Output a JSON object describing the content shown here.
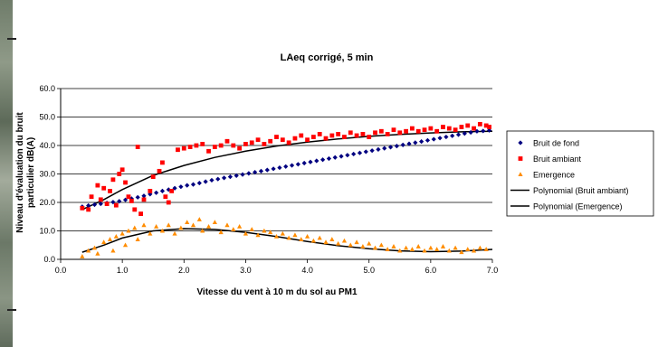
{
  "colors": {
    "bruit_de_fond": "#000080",
    "bruit_ambiant": "#ff0000",
    "emergence": "#ff8c00",
    "trend": "#000000",
    "grid": "#000000"
  },
  "chart_data": {
    "type": "scatter",
    "title": "LAeq corrigé, 5 min",
    "xlabel": "Vitesse du vent à 10 m du sol au PM1",
    "ylabel": [
      "Niveau d'évaluation du bruit",
      "particulier dB(A)"
    ],
    "xlim": [
      0,
      7
    ],
    "ylim": [
      0,
      60
    ],
    "x_ticks": [
      "0.0",
      "1.0",
      "2.0",
      "3.0",
      "4.0",
      "5.0",
      "6.0",
      "7.0"
    ],
    "y_ticks": [
      "0.0",
      "10.0",
      "20.0",
      "30.0",
      "40.0",
      "50.0",
      "60.0"
    ],
    "grid": "horizontal",
    "legend_position": "right",
    "series": [
      {
        "name": "Bruit de fond",
        "marker": "diamond",
        "points": [
          [
            0.35,
            18.5
          ],
          [
            0.45,
            18.9
          ],
          [
            0.55,
            19.2
          ],
          [
            0.65,
            19.5
          ],
          [
            0.75,
            19.8
          ],
          [
            0.85,
            20.1
          ],
          [
            0.95,
            20.4
          ],
          [
            1.05,
            20.9
          ],
          [
            1.15,
            21.3
          ],
          [
            1.25,
            21.8
          ],
          [
            1.35,
            22.3
          ],
          [
            1.45,
            22.9
          ],
          [
            1.55,
            23.4
          ],
          [
            1.65,
            24.0
          ],
          [
            1.75,
            24.5
          ],
          [
            1.85,
            25.0
          ],
          [
            1.95,
            25.5
          ],
          [
            2.05,
            26.0
          ],
          [
            2.15,
            26.3
          ],
          [
            2.25,
            26.8
          ],
          [
            2.35,
            27.3
          ],
          [
            2.45,
            27.8
          ],
          [
            2.55,
            28.2
          ],
          [
            2.65,
            28.6
          ],
          [
            2.75,
            29.0
          ],
          [
            2.85,
            29.4
          ],
          [
            2.95,
            29.8
          ],
          [
            3.05,
            30.2
          ],
          [
            3.15,
            30.6
          ],
          [
            3.25,
            31.0
          ],
          [
            3.35,
            31.4
          ],
          [
            3.45,
            31.8
          ],
          [
            3.55,
            32.2
          ],
          [
            3.65,
            32.6
          ],
          [
            3.75,
            33.0
          ],
          [
            3.85,
            33.4
          ],
          [
            3.95,
            33.8
          ],
          [
            4.05,
            34.2
          ],
          [
            4.15,
            34.6
          ],
          [
            4.25,
            35.0
          ],
          [
            4.35,
            35.4
          ],
          [
            4.45,
            35.8
          ],
          [
            4.55,
            36.2
          ],
          [
            4.65,
            36.6
          ],
          [
            4.75,
            37.0
          ],
          [
            4.85,
            37.4
          ],
          [
            4.95,
            37.8
          ],
          [
            5.05,
            38.2
          ],
          [
            5.15,
            38.6
          ],
          [
            5.25,
            39.0
          ],
          [
            5.35,
            39.4
          ],
          [
            5.45,
            39.8
          ],
          [
            5.55,
            40.2
          ],
          [
            5.65,
            40.6
          ],
          [
            5.75,
            41.0
          ],
          [
            5.85,
            41.4
          ],
          [
            5.95,
            41.8
          ],
          [
            6.05,
            42.2
          ],
          [
            6.15,
            42.6
          ],
          [
            6.25,
            43.0
          ],
          [
            6.35,
            43.4
          ],
          [
            6.45,
            43.8
          ],
          [
            6.55,
            44.2
          ],
          [
            6.65,
            44.6
          ],
          [
            6.75,
            45.0
          ],
          [
            6.85,
            45.1
          ],
          [
            6.95,
            45.3
          ]
        ]
      },
      {
        "name": "Bruit ambiant",
        "marker": "square",
        "points": [
          [
            0.35,
            18.0
          ],
          [
            0.45,
            17.5
          ],
          [
            0.5,
            22.0
          ],
          [
            0.6,
            26.0
          ],
          [
            0.65,
            21.0
          ],
          [
            0.7,
            25.0
          ],
          [
            0.75,
            19.5
          ],
          [
            0.8,
            24.0
          ],
          [
            0.85,
            28.0
          ],
          [
            0.9,
            19.0
          ],
          [
            0.95,
            30.0
          ],
          [
            1.0,
            31.5
          ],
          [
            1.05,
            27.0
          ],
          [
            1.1,
            22.0
          ],
          [
            1.15,
            20.5
          ],
          [
            1.2,
            17.5
          ],
          [
            1.25,
            39.5
          ],
          [
            1.3,
            16.0
          ],
          [
            1.35,
            21.0
          ],
          [
            1.45,
            24.0
          ],
          [
            1.5,
            29.0
          ],
          [
            1.6,
            31.0
          ],
          [
            1.65,
            34.0
          ],
          [
            1.7,
            22.0
          ],
          [
            1.75,
            20.0
          ],
          [
            1.8,
            24.0
          ],
          [
            1.9,
            38.5
          ],
          [
            2.0,
            39.0
          ],
          [
            2.1,
            39.5
          ],
          [
            2.2,
            40.0
          ],
          [
            2.3,
            40.5
          ],
          [
            2.4,
            38.0
          ],
          [
            2.5,
            39.5
          ],
          [
            2.6,
            40.0
          ],
          [
            2.7,
            41.5
          ],
          [
            2.8,
            40.0
          ],
          [
            2.9,
            39.0
          ],
          [
            3.0,
            40.5
          ],
          [
            3.1,
            41.0
          ],
          [
            3.2,
            42.0
          ],
          [
            3.3,
            40.5
          ],
          [
            3.4,
            41.5
          ],
          [
            3.5,
            43.0
          ],
          [
            3.6,
            42.0
          ],
          [
            3.7,
            41.0
          ],
          [
            3.8,
            42.5
          ],
          [
            3.9,
            43.5
          ],
          [
            4.0,
            42.0
          ],
          [
            4.1,
            43.0
          ],
          [
            4.2,
            44.0
          ],
          [
            4.3,
            42.5
          ],
          [
            4.4,
            43.5
          ],
          [
            4.5,
            44.0
          ],
          [
            4.6,
            43.0
          ],
          [
            4.7,
            44.5
          ],
          [
            4.8,
            43.5
          ],
          [
            4.9,
            44.0
          ],
          [
            5.0,
            43.0
          ],
          [
            5.1,
            44.5
          ],
          [
            5.2,
            45.0
          ],
          [
            5.3,
            44.0
          ],
          [
            5.4,
            45.5
          ],
          [
            5.5,
            44.5
          ],
          [
            5.6,
            45.0
          ],
          [
            5.7,
            46.0
          ],
          [
            5.8,
            45.0
          ],
          [
            5.9,
            45.5
          ],
          [
            6.0,
            46.0
          ],
          [
            6.1,
            45.0
          ],
          [
            6.2,
            46.5
          ],
          [
            6.3,
            46.0
          ],
          [
            6.4,
            45.5
          ],
          [
            6.5,
            46.5
          ],
          [
            6.6,
            47.0
          ],
          [
            6.7,
            46.0
          ],
          [
            6.8,
            47.5
          ],
          [
            6.9,
            47.0
          ],
          [
            6.95,
            46.5
          ]
        ]
      },
      {
        "name": "Emergence",
        "marker": "triangle",
        "points": [
          [
            0.35,
            1.0
          ],
          [
            0.45,
            3.0
          ],
          [
            0.55,
            4.0
          ],
          [
            0.6,
            2.0
          ],
          [
            0.7,
            6.0
          ],
          [
            0.8,
            7.0
          ],
          [
            0.85,
            3.0
          ],
          [
            0.9,
            8.0
          ],
          [
            1.0,
            9.0
          ],
          [
            1.05,
            5.0
          ],
          [
            1.1,
            10.0
          ],
          [
            1.2,
            11.0
          ],
          [
            1.25,
            7.0
          ],
          [
            1.35,
            12.0
          ],
          [
            1.45,
            9.0
          ],
          [
            1.55,
            11.5
          ],
          [
            1.65,
            10.0
          ],
          [
            1.75,
            12.0
          ],
          [
            1.85,
            9.0
          ],
          [
            1.95,
            11.0
          ],
          [
            2.05,
            13.0
          ],
          [
            2.15,
            12.0
          ],
          [
            2.25,
            14.0
          ],
          [
            2.3,
            10.0
          ],
          [
            2.4,
            11.5
          ],
          [
            2.5,
            13.0
          ],
          [
            2.6,
            9.5
          ],
          [
            2.7,
            12.0
          ],
          [
            2.8,
            10.5
          ],
          [
            2.9,
            11.5
          ],
          [
            3.0,
            9.0
          ],
          [
            3.1,
            10.5
          ],
          [
            3.2,
            8.5
          ],
          [
            3.3,
            10.0
          ],
          [
            3.4,
            9.5
          ],
          [
            3.5,
            8.0
          ],
          [
            3.6,
            9.0
          ],
          [
            3.7,
            7.5
          ],
          [
            3.8,
            8.5
          ],
          [
            3.9,
            7.0
          ],
          [
            4.0,
            8.0
          ],
          [
            4.1,
            6.5
          ],
          [
            4.2,
            7.5
          ],
          [
            4.3,
            6.0
          ],
          [
            4.4,
            7.0
          ],
          [
            4.5,
            5.5
          ],
          [
            4.6,
            6.5
          ],
          [
            4.7,
            5.0
          ],
          [
            4.8,
            6.0
          ],
          [
            4.9,
            4.5
          ],
          [
            5.0,
            5.5
          ],
          [
            5.1,
            4.0
          ],
          [
            5.2,
            5.0
          ],
          [
            5.3,
            3.5
          ],
          [
            5.4,
            4.5
          ],
          [
            5.5,
            3.0
          ],
          [
            5.6,
            4.0
          ],
          [
            5.7,
            3.5
          ],
          [
            5.8,
            4.5
          ],
          [
            5.9,
            3.0
          ],
          [
            6.0,
            4.0
          ],
          [
            6.1,
            3.5
          ],
          [
            6.2,
            4.5
          ],
          [
            6.3,
            3.0
          ],
          [
            6.4,
            4.0
          ],
          [
            6.5,
            2.5
          ],
          [
            6.6,
            3.5
          ],
          [
            6.7,
            3.0
          ],
          [
            6.8,
            4.0
          ],
          [
            6.9,
            3.5
          ]
        ]
      },
      {
        "name": "Polynomial (Bruit ambiant)",
        "marker": "line",
        "points": [
          [
            0.35,
            17.5
          ],
          [
            0.7,
            21.0
          ],
          [
            1.0,
            24.5
          ],
          [
            1.5,
            29.5
          ],
          [
            2.0,
            33.0
          ],
          [
            2.5,
            35.8
          ],
          [
            3.0,
            38.0
          ],
          [
            3.5,
            39.8
          ],
          [
            4.0,
            41.2
          ],
          [
            4.5,
            42.3
          ],
          [
            5.0,
            43.2
          ],
          [
            5.5,
            43.9
          ],
          [
            6.0,
            44.4
          ],
          [
            6.5,
            44.8
          ],
          [
            7.0,
            45.0
          ]
        ]
      },
      {
        "name": "Polynomial (Emergence)",
        "marker": "line",
        "points": [
          [
            0.35,
            2.5
          ],
          [
            0.7,
            5.0
          ],
          [
            1.0,
            7.5
          ],
          [
            1.5,
            10.0
          ],
          [
            2.0,
            10.8
          ],
          [
            2.5,
            10.5
          ],
          [
            3.0,
            9.5
          ],
          [
            3.5,
            8.0
          ],
          [
            4.0,
            6.3
          ],
          [
            4.5,
            4.8
          ],
          [
            5.0,
            3.7
          ],
          [
            5.5,
            3.0
          ],
          [
            6.0,
            2.7
          ],
          [
            6.5,
            2.9
          ],
          [
            7.0,
            3.5
          ]
        ]
      }
    ]
  }
}
